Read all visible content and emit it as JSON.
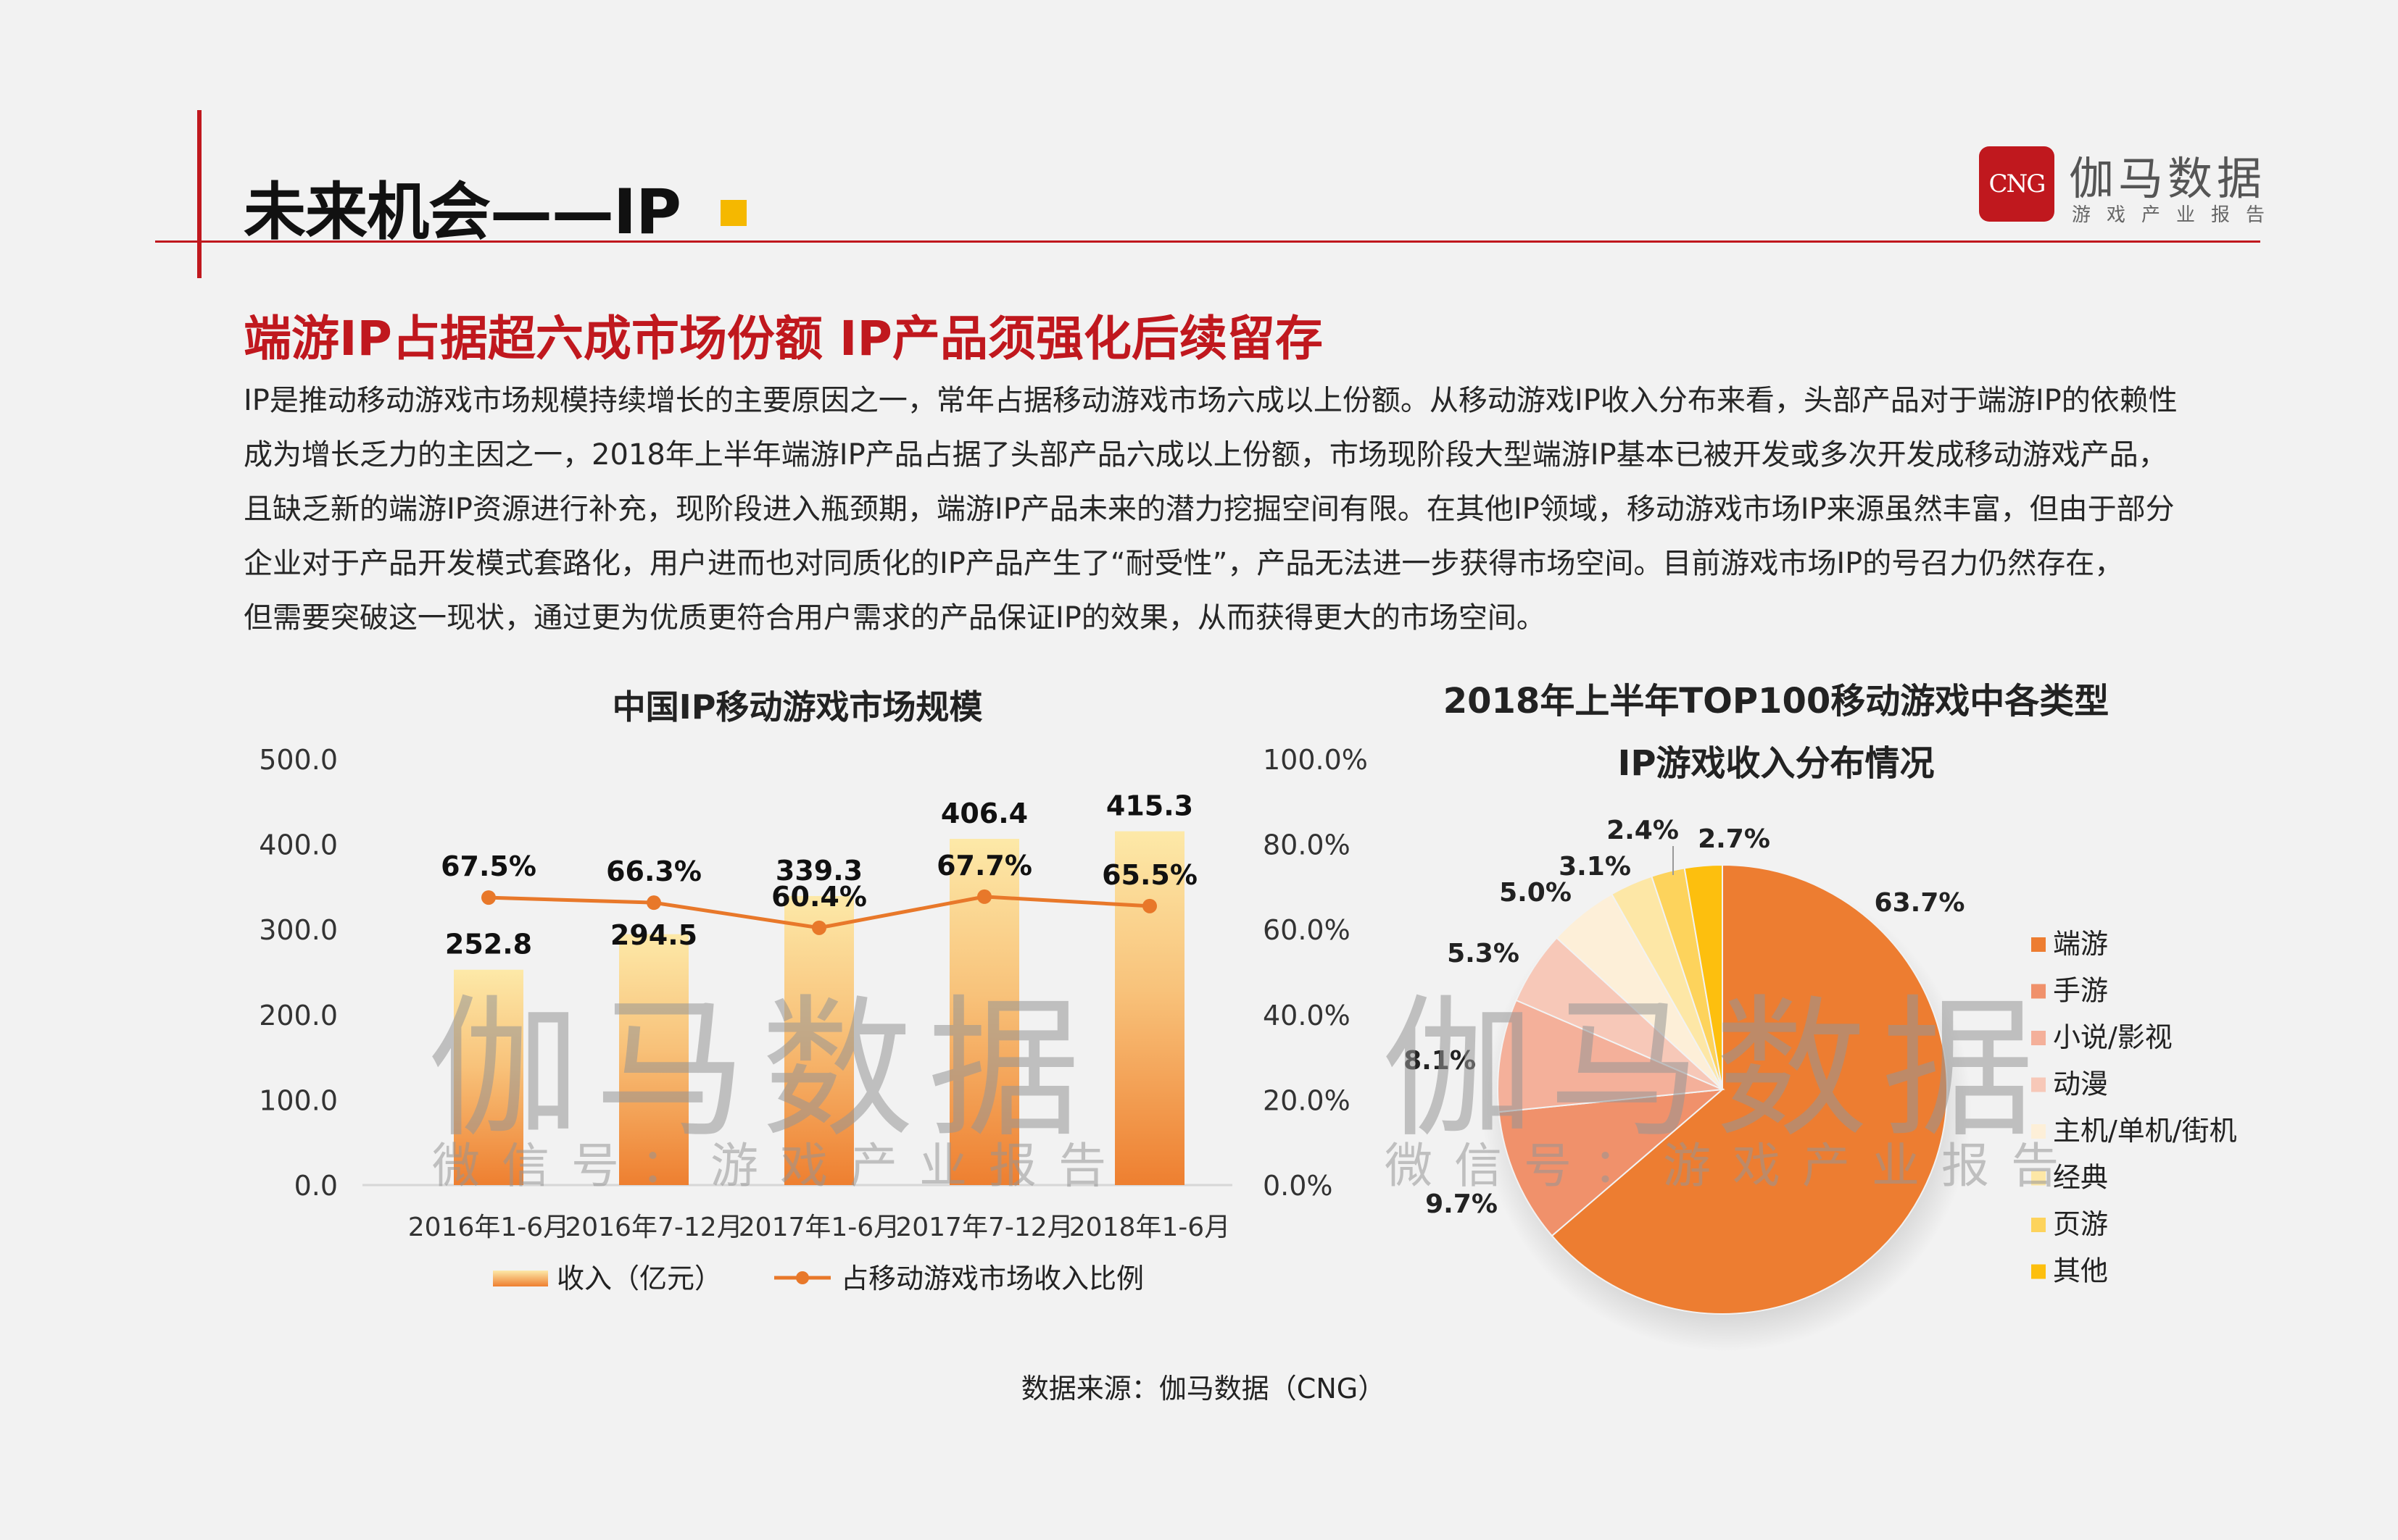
{
  "header": {
    "title": "未来机会——IP",
    "logo_badge": "CNG",
    "logo_name": "伽马数据",
    "logo_sub": "游戏产业报告"
  },
  "subtitle": "端游IP占据超六成市场份额  IP产品须强化后续留存",
  "paragraph_lines": [
    "IP是推动移动游戏市场规模持续增长的主要原因之一，常年占据移动游戏市场六成以上份额。从移动游戏IP收入分布来看，头部产品对于端游IP的依赖性",
    "成为增长乏力的主因之一，2018年上半年端游IP产品占据了头部产品六成以上份额，市场现阶段大型端游IP基本已被开发或多次开发成移动游戏产品，",
    "且缺乏新的端游IP资源进行补充，现阶段进入瓶颈期，端游IP产品未来的潜力挖掘空间有限。在其他IP领域，移动游戏市场IP来源虽然丰富，但由于部分",
    "企业对于产品开发模式套路化，用户进而也对同质化的IP产品产生了“耐受性”，产品无法进一步获得市场空间。目前游戏市场IP的号召力仍然存在，",
    "但需要突破这一现状，通过更为优质更符合用户需求的产品保证IP的效果，从而获得更大的市场空间。"
  ],
  "watermark": {
    "main": "伽马数据",
    "sub": "微信号：游戏产业报告"
  },
  "source": "数据来源：伽马数据（CNG）",
  "chart_data": [
    {
      "type": "bar",
      "title": "中国IP移动游戏市场规模",
      "categories": [
        "2016年1-6月",
        "2016年7-12月",
        "2017年1-6月",
        "2017年7-12月",
        "2018年1-6月"
      ],
      "series": [
        {
          "name": "收入（亿元）",
          "type": "bar",
          "axis": "left",
          "values": [
            252.8,
            294.5,
            339.3,
            406.4,
            415.3
          ],
          "color": "#f08a30"
        },
        {
          "name": "占移动游戏市场收入比例",
          "type": "line",
          "axis": "right",
          "values": [
            67.5,
            66.3,
            60.4,
            67.7,
            65.5
          ],
          "color": "#e8782a"
        }
      ],
      "left_axis": {
        "ylim": [
          0,
          500
        ],
        "ticks": [
          "0.0",
          "100.0",
          "200.0",
          "300.0",
          "400.0",
          "500.0"
        ]
      },
      "right_axis": {
        "ylim": [
          0,
          100
        ],
        "ticks": [
          "0.0%",
          "20.0%",
          "40.0%",
          "60.0%",
          "80.0%",
          "100.0%"
        ]
      },
      "bar_labels": [
        "252.8",
        "294.5",
        "339.3",
        "406.4",
        "415.3"
      ],
      "line_labels": [
        "67.5%",
        "66.3%",
        "60.4%",
        "67.7%",
        "65.5%"
      ],
      "legend_position": "bottom"
    },
    {
      "type": "pie",
      "title": "2018年上半年TOP100移动游戏中各类型IP游戏收入分布情况",
      "title_lines": [
        "2018年上半年TOP100移动游戏中各类型",
        "IP游戏收入分布情况"
      ],
      "labels": [
        "端游",
        "手游",
        "小说/影视",
        "动漫",
        "主机/单机/街机",
        "经典",
        "页游",
        "其他"
      ],
      "values": [
        63.7,
        9.7,
        8.1,
        5.3,
        5.0,
        3.1,
        2.4,
        2.7
      ],
      "value_labels": [
        "63.7%",
        "9.7%",
        "8.1%",
        "5.3%",
        "5.0%",
        "3.1%",
        "2.4%",
        "2.7%"
      ],
      "colors": [
        "#ed7d31",
        "#f0916b",
        "#f4b09a",
        "#f7c8b8",
        "#fdefd8",
        "#fde7a6",
        "#fdd35c",
        "#fdbf0e"
      ],
      "legend_position": "right"
    }
  ]
}
